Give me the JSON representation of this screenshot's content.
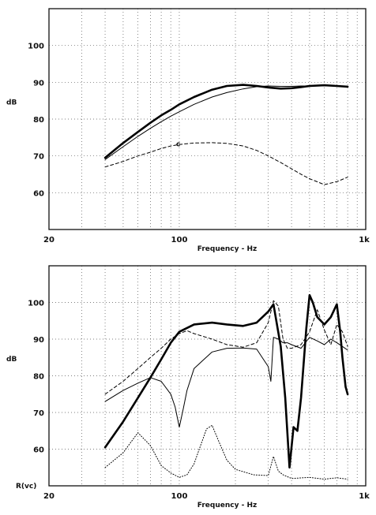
{
  "chart_data": [
    {
      "type": "line",
      "title": "",
      "xlabel": "Frequency - Hz",
      "ylabel": "dB",
      "xscale": "log",
      "xlim": [
        20,
        1000
      ],
      "ylim": [
        50,
        110
      ],
      "grid": true,
      "x_ticks": [
        "20",
        "100",
        "1k"
      ],
      "y_ticks": [
        "60",
        "70",
        "80",
        "90",
        "100"
      ],
      "annotations": [
        {
          "text": "c",
          "x": 100,
          "y": 73.2
        }
      ],
      "series": [
        {
          "style": "solid-heavy",
          "x": [
            40,
            50,
            60,
            70,
            80,
            90,
            100,
            120,
            150,
            180,
            220,
            260,
            300,
            350,
            400,
            450,
            500,
            600,
            700,
            800
          ],
          "y": [
            69.5,
            73.5,
            76.5,
            79,
            81,
            82.5,
            84,
            86,
            88,
            89,
            89.3,
            89,
            88.6,
            88.3,
            88.4,
            88.7,
            89,
            89.2,
            89,
            88.8
          ]
        },
        {
          "style": "solid-thin",
          "x": [
            40,
            50,
            60,
            70,
            80,
            90,
            100,
            120,
            150,
            180,
            220,
            260,
            300,
            350,
            400,
            450,
            500,
            600,
            700,
            800
          ],
          "y": [
            69,
            72.5,
            75.3,
            77.5,
            79.3,
            80.8,
            82,
            84,
            86,
            87.2,
            88.2,
            88.8,
            89,
            88.9,
            88.9,
            89,
            89,
            89,
            89,
            88.8
          ]
        },
        {
          "style": "dashed",
          "x": [
            40,
            50,
            60,
            70,
            80,
            90,
            100,
            120,
            150,
            180,
            220,
            260,
            300,
            350,
            400,
            450,
            500,
            600,
            700,
            800
          ],
          "y": [
            67,
            68.5,
            70,
            71,
            72,
            72.7,
            73.1,
            73.5,
            73.6,
            73.4,
            72.7,
            71.5,
            70,
            68.2,
            66.5,
            65,
            63.8,
            62.2,
            63,
            64.2
          ]
        }
      ]
    },
    {
      "type": "line",
      "title": "",
      "xlabel": "Frequency - Hz",
      "ylabel": "dB",
      "xscale": "log",
      "xlim": [
        20,
        1000
      ],
      "ylim": [
        50,
        110
      ],
      "grid": true,
      "x_ticks": [
        "20",
        "100",
        "1k"
      ],
      "y_ticks": [
        "60",
        "70",
        "80",
        "90",
        "100"
      ],
      "bottom_left_label": "R(vc)",
      "series": [
        {
          "style": "solid-heavy",
          "x": [
            40,
            50,
            60,
            70,
            80,
            90,
            100,
            120,
            150,
            180,
            220,
            260,
            300,
            320,
            350,
            370,
            390,
            410,
            430,
            450,
            480,
            500,
            520,
            550,
            600,
            650,
            700,
            730,
            750,
            780,
            800
          ],
          "y": [
            60.5,
            67.5,
            74,
            79.5,
            84.5,
            89,
            92,
            94,
            94.5,
            94,
            93.6,
            94.5,
            97.5,
            99.5,
            88,
            74,
            55,
            66,
            65,
            74,
            93,
            102,
            100,
            96,
            94,
            96,
            99.5,
            92,
            85,
            77,
            75
          ]
        },
        {
          "style": "solid-thin",
          "x": [
            40,
            50,
            60,
            70,
            80,
            90,
            95,
            100,
            105,
            110,
            120,
            150,
            180,
            220,
            260,
            300,
            310,
            320,
            340,
            360,
            380,
            400,
            450,
            500,
            550,
            600,
            650,
            700,
            750,
            800
          ],
          "y": [
            73,
            76,
            78,
            79.5,
            78.5,
            75,
            71.5,
            66,
            71,
            76,
            82,
            86.5,
            87.5,
            87.6,
            87.3,
            82.5,
            78.5,
            90.5,
            90,
            89,
            89,
            88.5,
            87.5,
            90.5,
            89.5,
            88.5,
            90,
            89,
            88,
            87
          ]
        },
        {
          "style": "dashed",
          "x": [
            40,
            50,
            60,
            70,
            80,
            90,
            100,
            110,
            120,
            150,
            180,
            220,
            260,
            300,
            320,
            340,
            360,
            380,
            400,
            450,
            500,
            550,
            600,
            650,
            700,
            750,
            800
          ],
          "y": [
            75,
            78.5,
            82,
            85,
            87.5,
            90,
            91.5,
            92.3,
            91.5,
            90,
            88.5,
            87.8,
            89,
            94.5,
            100.5,
            99,
            90,
            87.5,
            87.5,
            88.5,
            92,
            98,
            92.5,
            88.5,
            94,
            92,
            88
          ]
        },
        {
          "style": "dotted",
          "x": [
            40,
            50,
            60,
            70,
            80,
            90,
            100,
            110,
            120,
            130,
            140,
            150,
            160,
            180,
            200,
            250,
            300,
            320,
            340,
            360,
            400,
            500,
            600,
            700,
            800
          ],
          "y": [
            55,
            59,
            64.5,
            61,
            55.5,
            53.5,
            52.3,
            53,
            56,
            61,
            65.5,
            66.5,
            63,
            57,
            54.5,
            53,
            52.8,
            58,
            54,
            53,
            52,
            52.3,
            51.8,
            52.2,
            51.8
          ]
        }
      ]
    }
  ]
}
